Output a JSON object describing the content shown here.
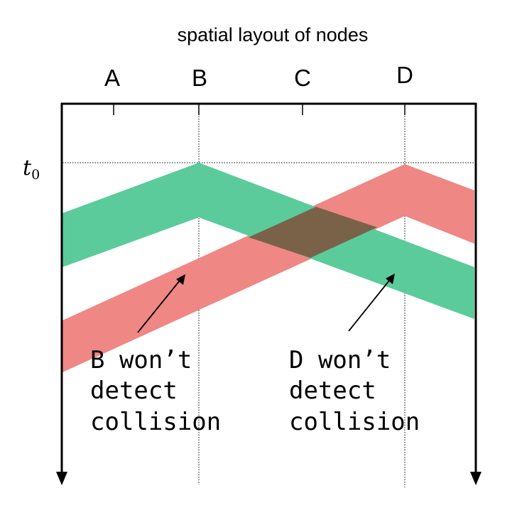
{
  "title": "spatial layout of nodes",
  "nodes": [
    "A",
    "B",
    "C",
    "D"
  ],
  "time_label": {
    "symbol": "t",
    "subscript": "0"
  },
  "annotations": {
    "left": [
      "B won’t",
      "detect",
      "collision"
    ],
    "right": [
      "D won’t",
      "detect",
      "collision"
    ]
  },
  "colors": {
    "signal_b": "#5bcb9c",
    "signal_d": "#ef8784",
    "overlap": "#7a6248",
    "axis": "#000000"
  }
}
